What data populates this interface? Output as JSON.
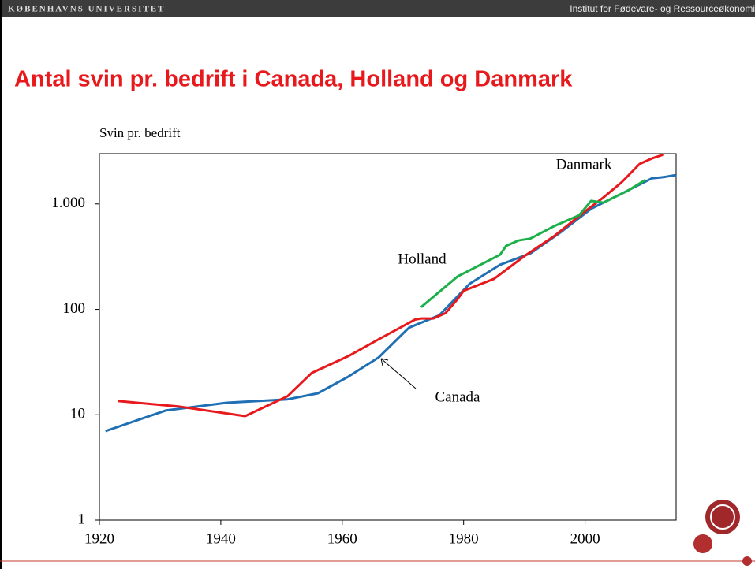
{
  "header": {
    "left": "KØBENHAVNS UNIVERSITET",
    "right": "Institut for Fødevare- og Ressourceøkonomi"
  },
  "chart_data": {
    "type": "line",
    "title": "Antal svin pr. bedrift i Canada, Holland og Danmark",
    "y_label": "Svin pr. bedrift",
    "xlim": [
      1920,
      2015
    ],
    "xticks": [
      1920,
      1940,
      1960,
      1980,
      2000
    ],
    "ylim": [
      1,
      3000
    ],
    "log_scale": true,
    "yticks": [
      1,
      10,
      100,
      {
        "value": 1000,
        "label": "1.000"
      }
    ],
    "series": [
      {
        "name": "Canada",
        "color": "#1f6fb5",
        "x": [
          1921,
          1931,
          1941,
          1951,
          1956,
          1961,
          1966,
          1971,
          1976,
          1981,
          1986,
          1991,
          1996,
          2001,
          2006,
          2011,
          2013,
          2015
        ],
        "values": [
          7,
          11,
          13,
          14,
          16,
          23,
          35,
          67,
          88,
          175,
          265,
          340,
          540,
          900,
          1250,
          1750,
          1800,
          1880
        ]
      },
      {
        "name": "Danmark",
        "color": "#e8191c",
        "x": [
          1923,
          1933,
          1944,
          1951,
          1955,
          1961,
          1966,
          1972,
          1973,
          1975,
          1977,
          1979,
          1980,
          1985,
          1990,
          1995,
          2000,
          2003,
          2006,
          2009,
          2011,
          2013
        ],
        "values": [
          13.5,
          12,
          9.7,
          15,
          25,
          36,
          52,
          80,
          82,
          82,
          92,
          125,
          150,
          195,
          320,
          500,
          850,
          1150,
          1600,
          2400,
          2700,
          2950
        ]
      },
      {
        "name": "Holland",
        "color": "#1db04a",
        "x": [
          1973,
          1979,
          1986,
          1987,
          1989,
          1991,
          1995,
          1999,
          2001,
          2003,
          2007,
          2010
        ],
        "values": [
          105,
          205,
          330,
          400,
          450,
          470,
          620,
          780,
          1070,
          1030,
          1330,
          1700
        ]
      }
    ]
  }
}
